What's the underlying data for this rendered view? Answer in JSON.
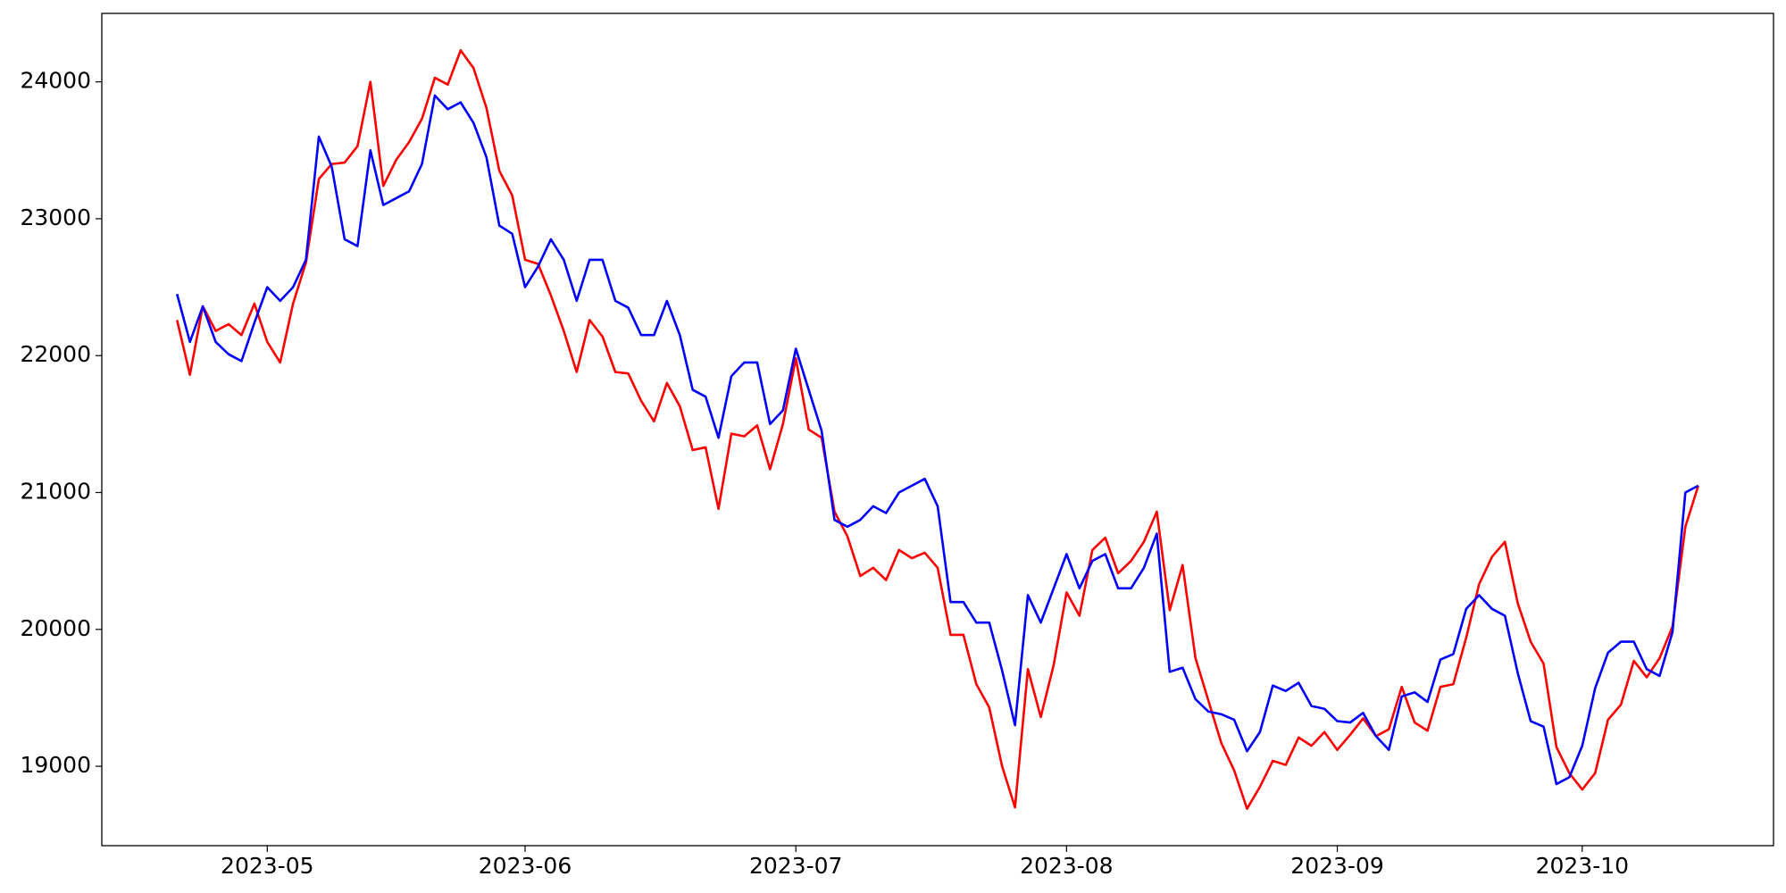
{
  "chart_data": {
    "type": "line",
    "categories": [
      null,
      null,
      null,
      null,
      null,
      null,
      null,
      "2023-05",
      null,
      null,
      null,
      null,
      null,
      null,
      null,
      null,
      null,
      null,
      null,
      null,
      null,
      null,
      null,
      null,
      null,
      null,
      null,
      "2023-06",
      null,
      null,
      null,
      null,
      null,
      null,
      null,
      null,
      null,
      null,
      null,
      null,
      null,
      null,
      null,
      null,
      null,
      null,
      null,
      null,
      "2023-07",
      null,
      null,
      null,
      null,
      null,
      null,
      null,
      null,
      null,
      null,
      null,
      null,
      null,
      null,
      null,
      null,
      null,
      null,
      null,
      null,
      "2023-08",
      null,
      null,
      null,
      null,
      null,
      null,
      null,
      null,
      null,
      null,
      null,
      null,
      null,
      null,
      null,
      null,
      null,
      null,
      null,
      null,
      "2023-09",
      null,
      null,
      null,
      null,
      null,
      null,
      null,
      null,
      null,
      null,
      null,
      null,
      null,
      null,
      null,
      null,
      null,
      null,
      "2023-10",
      null,
      null,
      null,
      null,
      null,
      null,
      null,
      null,
      null
    ],
    "series": [
      {
        "color": "#ff0000",
        "values": [
          22260,
          21860,
          22360,
          22180,
          22230,
          22150,
          22380,
          22100,
          21950,
          22380,
          22680,
          23290,
          23400,
          23410,
          23530,
          24000,
          23240,
          23430,
          23560,
          23730,
          24030,
          23980,
          24230,
          24100,
          23810,
          23350,
          23170,
          22700,
          22670,
          22440,
          22180,
          21880,
          22260,
          22140,
          21880,
          21870,
          21670,
          21520,
          21800,
          21630,
          21310,
          21330,
          20880,
          21430,
          21410,
          21490,
          21170,
          21500,
          21980,
          21460,
          21400,
          20860,
          20680,
          20390,
          20450,
          20360,
          20580,
          20520,
          20560,
          20450,
          19960,
          19960,
          19600,
          19430,
          19000,
          18700,
          19710,
          19360,
          19740,
          20270,
          20100,
          20580,
          20670,
          20410,
          20500,
          20640,
          20860,
          20140,
          20470,
          19790,
          19480,
          19170,
          18970,
          18690,
          18850,
          19040,
          19010,
          19210,
          19150,
          19250,
          19120,
          19230,
          19350,
          19220,
          19270,
          19580,
          19320,
          19260,
          19580,
          19600,
          19940,
          20330,
          20530,
          20640,
          20190,
          19910,
          19750,
          19140,
          18950,
          18830,
          18950,
          19340,
          19450,
          19770,
          19650,
          19790,
          20020,
          20750,
          21050
        ]
      },
      {
        "color": "#0000ff",
        "values": [
          22450,
          22100,
          22360,
          22100,
          22010,
          21960,
          22240,
          22500,
          22400,
          22500,
          22700,
          23600,
          23380,
          22850,
          22800,
          23500,
          23100,
          23150,
          23200,
          23400,
          23900,
          23800,
          23850,
          23700,
          23450,
          22950,
          22890,
          22500,
          22650,
          22850,
          22700,
          22400,
          22700,
          22700,
          22400,
          22350,
          22150,
          22150,
          22400,
          22150,
          21750,
          21700,
          21400,
          21850,
          21950,
          21950,
          21500,
          21600,
          22050,
          21750,
          21450,
          20800,
          20750,
          20800,
          20900,
          20850,
          21000,
          21050,
          21100,
          20900,
          20200,
          20200,
          20050,
          20050,
          19700,
          19300,
          20250,
          20050,
          20300,
          20550,
          20300,
          20500,
          20550,
          20300,
          20300,
          20450,
          20700,
          19690,
          19720,
          19490,
          19400,
          19380,
          19340,
          19110,
          19250,
          19590,
          19550,
          19610,
          19440,
          19420,
          19330,
          19320,
          19390,
          19220,
          19120,
          19510,
          19540,
          19470,
          19780,
          19820,
          20150,
          20250,
          20150,
          20100,
          19680,
          19330,
          19290,
          18870,
          18920,
          19150,
          19570,
          19830,
          19910,
          19910,
          19710,
          19660,
          19980,
          21000,
          21050
        ]
      }
    ],
    "ylim": [
      18420,
      24500
    ],
    "yticks": [
      19000,
      20000,
      21000,
      22000,
      23000,
      24000
    ],
    "grid": false
  }
}
